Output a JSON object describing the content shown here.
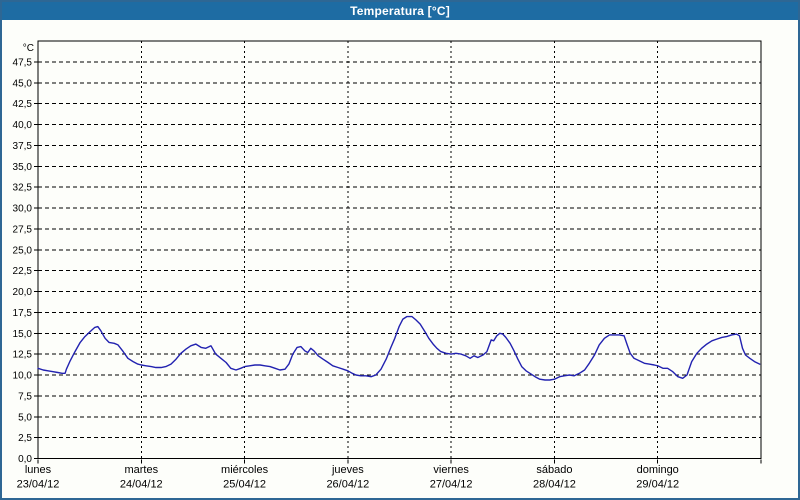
{
  "window": {
    "title": "Temperatura [°C]",
    "title_bar_color": "#1e6ca3",
    "border_color": "#2e6794",
    "background_color": "#fdfefa"
  },
  "chart_data": {
    "type": "line",
    "title": "Temperatura [°C]",
    "grid": "dashed",
    "legend": "none",
    "line_color": "#2222b0",
    "grid_color": "#000000",
    "axis_color": "#000000",
    "y_axis": {
      "unit_label": "°C",
      "min": 0,
      "max": 50,
      "tick_step": 2.5,
      "tick_labels": [
        "0,0",
        "2,5",
        "5,0",
        "7,5",
        "10,0",
        "12,5",
        "15,0",
        "17,5",
        "20,0",
        "22,5",
        "25,0",
        "27,5",
        "30,0",
        "32,5",
        "35,0",
        "37,5",
        "40,0",
        "42,5",
        "45,0",
        "47,5"
      ]
    },
    "x_axis": {
      "total_hours": 168,
      "days": [
        {
          "name": "lunes",
          "date": "23/04/12"
        },
        {
          "name": "martes",
          "date": "24/04/12"
        },
        {
          "name": "miércoles",
          "date": "25/04/12"
        },
        {
          "name": "jueves",
          "date": "26/04/12"
        },
        {
          "name": "viernes",
          "date": "27/04/12"
        },
        {
          "name": "sábado",
          "date": "28/04/12"
        },
        {
          "name": "domingo",
          "date": "29/04/12"
        }
      ]
    },
    "series": [
      {
        "name": "Temperatura",
        "points_hours_celsius": [
          [
            0,
            10.8
          ],
          [
            1.2,
            10.6
          ],
          [
            2.3,
            10.5
          ],
          [
            3.5,
            10.4
          ],
          [
            4.6,
            10.3
          ],
          [
            5.6,
            10.2
          ],
          [
            6.3,
            10.2
          ],
          [
            6.6,
            10.7
          ],
          [
            7.4,
            11.6
          ],
          [
            8.6,
            12.8
          ],
          [
            9.8,
            13.9
          ],
          [
            10.9,
            14.6
          ],
          [
            12.1,
            15.2
          ],
          [
            13.2,
            15.7
          ],
          [
            13.9,
            15.8
          ],
          [
            14.6,
            15.3
          ],
          [
            15.6,
            14.4
          ],
          [
            16.5,
            13.9
          ],
          [
            17.7,
            13.8
          ],
          [
            18.6,
            13.6
          ],
          [
            19.8,
            12.8
          ],
          [
            20.9,
            12.0
          ],
          [
            22.1,
            11.6
          ],
          [
            23.2,
            11.3
          ],
          [
            24,
            11.2
          ],
          [
            25.1,
            11.1
          ],
          [
            26.3,
            11.0
          ],
          [
            27.4,
            10.9
          ],
          [
            28.6,
            10.9
          ],
          [
            29.7,
            11.0
          ],
          [
            30.9,
            11.3
          ],
          [
            32.1,
            11.9
          ],
          [
            33.2,
            12.6
          ],
          [
            34.4,
            13.1
          ],
          [
            35.5,
            13.5
          ],
          [
            36.7,
            13.7
          ],
          [
            37.9,
            13.3
          ],
          [
            39.0,
            13.2
          ],
          [
            40.2,
            13.5
          ],
          [
            41.3,
            12.5
          ],
          [
            42.5,
            12.0
          ],
          [
            43.7,
            11.5
          ],
          [
            44.8,
            10.8
          ],
          [
            46.0,
            10.6
          ],
          [
            47.1,
            10.8
          ],
          [
            48,
            11.0
          ],
          [
            49.2,
            11.1
          ],
          [
            50.4,
            11.2
          ],
          [
            51.6,
            11.2
          ],
          [
            52.7,
            11.1
          ],
          [
            53.9,
            11.0
          ],
          [
            55.1,
            10.8
          ],
          [
            56.2,
            10.6
          ],
          [
            57.4,
            10.7
          ],
          [
            58.3,
            11.3
          ],
          [
            59.2,
            12.5
          ],
          [
            60.2,
            13.3
          ],
          [
            61.1,
            13.4
          ],
          [
            62.0,
            12.9
          ],
          [
            62.7,
            12.7
          ],
          [
            63.4,
            13.2
          ],
          [
            64.1,
            12.9
          ],
          [
            65.1,
            12.3
          ],
          [
            66.2,
            11.9
          ],
          [
            67.4,
            11.5
          ],
          [
            68.5,
            11.1
          ],
          [
            69.7,
            10.9
          ],
          [
            70.9,
            10.7
          ],
          [
            72,
            10.5
          ],
          [
            73,
            10.2
          ],
          [
            73.9,
            10.0
          ],
          [
            75,
            9.9
          ],
          [
            76.2,
            9.9
          ],
          [
            77.4,
            9.8
          ],
          [
            78.5,
            10.0
          ],
          [
            79.7,
            10.7
          ],
          [
            80.9,
            11.9
          ],
          [
            82,
            13.3
          ],
          [
            82.9,
            14.4
          ],
          [
            83.9,
            15.8
          ],
          [
            84.8,
            16.7
          ],
          [
            85.7,
            17.0
          ],
          [
            86.9,
            17.0
          ],
          [
            87.8,
            16.6
          ],
          [
            88.8,
            16.1
          ],
          [
            89.9,
            15.2
          ],
          [
            90.8,
            14.4
          ],
          [
            91.8,
            13.7
          ],
          [
            92.7,
            13.2
          ],
          [
            93.6,
            12.8
          ],
          [
            94.8,
            12.6
          ],
          [
            96,
            12.5
          ],
          [
            97.1,
            12.6
          ],
          [
            98.3,
            12.5
          ],
          [
            99.4,
            12.3
          ],
          [
            100.4,
            12.0
          ],
          [
            101.3,
            12.3
          ],
          [
            102.2,
            12.1
          ],
          [
            103.4,
            12.4
          ],
          [
            104.3,
            12.8
          ],
          [
            105.3,
            14.2
          ],
          [
            105.9,
            14.1
          ],
          [
            106.6,
            14.7
          ],
          [
            107.3,
            15.0
          ],
          [
            108,
            14.9
          ],
          [
            108.7,
            14.5
          ],
          [
            109.7,
            13.8
          ],
          [
            110.6,
            12.9
          ],
          [
            111.5,
            11.9
          ],
          [
            112.4,
            11.0
          ],
          [
            113.4,
            10.5
          ],
          [
            114.3,
            10.2
          ],
          [
            115.5,
            9.8
          ],
          [
            116.6,
            9.5
          ],
          [
            117.8,
            9.4
          ],
          [
            118.9,
            9.4
          ],
          [
            120,
            9.5
          ],
          [
            121.2,
            9.8
          ],
          [
            122.3,
            9.9
          ],
          [
            123.5,
            10.0
          ],
          [
            124.6,
            9.9
          ],
          [
            125.8,
            10.2
          ],
          [
            127,
            10.6
          ],
          [
            128.1,
            11.4
          ],
          [
            129.3,
            12.4
          ],
          [
            130.4,
            13.6
          ],
          [
            131.6,
            14.4
          ],
          [
            132.8,
            14.8
          ],
          [
            133.9,
            14.8
          ],
          [
            135.1,
            14.8
          ],
          [
            136.2,
            14.7
          ],
          [
            136.9,
            13.6
          ],
          [
            137.6,
            12.6
          ],
          [
            138.5,
            12.0
          ],
          [
            139.7,
            11.7
          ],
          [
            140.9,
            11.4
          ],
          [
            142,
            11.3
          ],
          [
            143.2,
            11.2
          ],
          [
            144,
            11.1
          ],
          [
            145.2,
            10.8
          ],
          [
            146.3,
            10.8
          ],
          [
            147.5,
            10.4
          ],
          [
            148.7,
            9.8
          ],
          [
            149.8,
            9.6
          ],
          [
            150.8,
            10.0
          ],
          [
            151.9,
            11.6
          ],
          [
            153.1,
            12.6
          ],
          [
            154.2,
            13.2
          ],
          [
            155.4,
            13.7
          ],
          [
            156.6,
            14.1
          ],
          [
            157.7,
            14.3
          ],
          [
            158.9,
            14.5
          ],
          [
            160,
            14.6
          ],
          [
            161.2,
            14.8
          ],
          [
            162.3,
            14.9
          ],
          [
            163,
            14.7
          ],
          [
            163.7,
            13.2
          ],
          [
            164.4,
            12.4
          ],
          [
            165.4,
            12.0
          ],
          [
            166.5,
            11.6
          ],
          [
            167.7,
            11.3
          ]
        ]
      }
    ]
  }
}
